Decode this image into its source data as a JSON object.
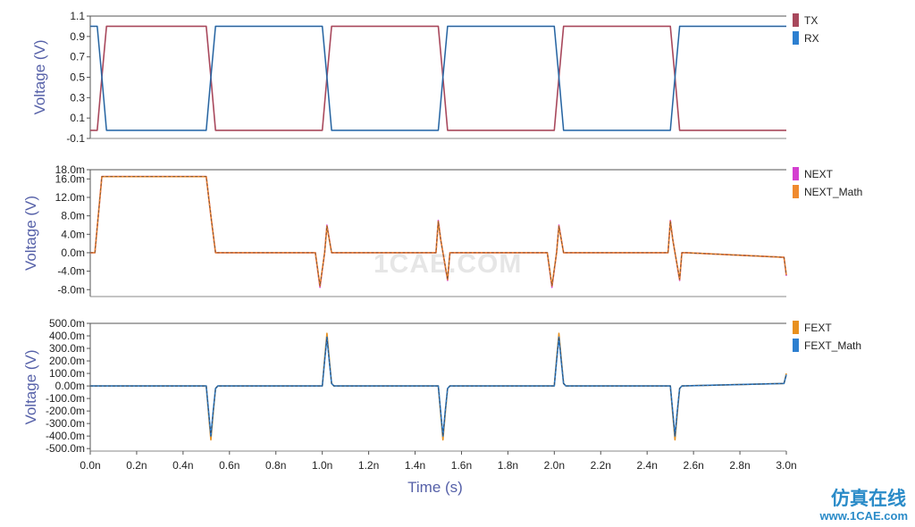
{
  "chart_data": [
    {
      "type": "line",
      "ylabel": "Voltage (V)",
      "xlabel": "",
      "xlim": [
        0,
        3.0
      ],
      "ylim": [
        -0.1,
        1.1
      ],
      "yticks": [
        1.1,
        0.9,
        0.7,
        0.5,
        0.3,
        0.1,
        -0.1
      ],
      "ytick_labels": [
        "1.1",
        "0.9",
        "0.7",
        "0.5",
        "0.3",
        "0.1",
        "-0.1"
      ],
      "legend_position": "right",
      "series": [
        {
          "name": "TX",
          "color": "#a8485c",
          "x": [
            0,
            0.03,
            0.05,
            0.07,
            0.5,
            0.52,
            0.54,
            1.0,
            1.02,
            1.04,
            1.5,
            1.52,
            1.54,
            2.0,
            2.02,
            2.04,
            2.5,
            2.52,
            2.54,
            3.0
          ],
          "y": [
            -0.02,
            -0.02,
            0.5,
            1.0,
            1.0,
            0.5,
            -0.02,
            -0.02,
            0.5,
            1.0,
            1.0,
            0.5,
            -0.02,
            -0.02,
            0.5,
            1.0,
            1.0,
            0.5,
            -0.02,
            -0.02
          ]
        },
        {
          "name": "RX",
          "color": "#2d7fd0",
          "x": [
            0,
            0.03,
            0.05,
            0.07,
            0.5,
            0.52,
            0.54,
            1.0,
            1.02,
            1.04,
            1.5,
            1.52,
            1.54,
            2.0,
            2.02,
            2.04,
            2.5,
            2.52,
            2.54,
            3.0
          ],
          "y": [
            1.0,
            1.0,
            0.5,
            -0.02,
            -0.02,
            0.5,
            1.0,
            1.0,
            0.5,
            -0.02,
            -0.02,
            0.5,
            1.0,
            1.0,
            0.5,
            -0.02,
            -0.02,
            0.5,
            1.0,
            1.0
          ]
        }
      ]
    },
    {
      "type": "line",
      "ylabel": "Voltage (V)",
      "xlabel": "",
      "xlim": [
        0,
        3.0
      ],
      "ylim": [
        -9.5,
        18.0
      ],
      "yticks": [
        18,
        16,
        12,
        8,
        4,
        0,
        -4,
        -8
      ],
      "ytick_labels": [
        "18.0m",
        "16.0m",
        "12.0m",
        "8.0m",
        "4.0m",
        "0.0m",
        "-4.0m",
        "-8.0m"
      ],
      "legend_position": "right",
      "series": [
        {
          "name": "NEXT",
          "color": "#d43fd0",
          "x": [
            0,
            0.02,
            0.05,
            0.5,
            0.52,
            0.54,
            0.97,
            0.99,
            1.01,
            1.02,
            1.04,
            1.06,
            1.49,
            1.5,
            1.51,
            1.52,
            1.54,
            1.55,
            1.57,
            1.97,
            1.99,
            2.01,
            2.02,
            2.04,
            2.06,
            2.49,
            2.5,
            2.51,
            2.52,
            2.54,
            2.55,
            2.57,
            2.99,
            3.0
          ],
          "y": [
            0,
            0,
            16.5,
            16.5,
            8,
            0,
            0,
            -7.5,
            0,
            6,
            0,
            0,
            0,
            7,
            3,
            0,
            -6,
            0,
            0,
            0,
            -7.5,
            0,
            6,
            0,
            0,
            0,
            7,
            3,
            0,
            -6,
            0,
            0,
            -1,
            -5
          ]
        },
        {
          "name": "NEXT_Math",
          "color": "#f08a2e",
          "x": [
            0,
            0.02,
            0.05,
            0.5,
            0.52,
            0.54,
            0.97,
            0.99,
            1.01,
            1.02,
            1.04,
            1.06,
            1.49,
            1.5,
            1.51,
            1.52,
            1.54,
            1.55,
            1.57,
            1.97,
            1.99,
            2.01,
            2.02,
            2.04,
            2.06,
            2.49,
            2.5,
            2.51,
            2.52,
            2.54,
            2.55,
            2.57,
            2.99,
            3.0
          ],
          "y": [
            0,
            0,
            16.5,
            16.5,
            8,
            0,
            0,
            -7.2,
            0,
            5.8,
            0,
            0,
            0,
            6.8,
            3,
            0,
            -5.8,
            0,
            0,
            0,
            -7.2,
            0,
            5.8,
            0,
            0,
            0,
            6.8,
            3,
            0,
            -5.8,
            0,
            0,
            -1,
            -4.8
          ]
        }
      ]
    },
    {
      "type": "line",
      "ylabel": "Voltage (V)",
      "xlabel": "Time (s)",
      "xlim": [
        0,
        3.0
      ],
      "ylim": [
        -520,
        500
      ],
      "yticks": [
        500,
        400,
        300,
        200,
        100,
        0,
        -100,
        -200,
        -300,
        -400,
        -500
      ],
      "ytick_labels": [
        "500.0m",
        "400.0m",
        "300.0m",
        "200.0m",
        "100.0m",
        "0.00m",
        "-100.0m",
        "-200.0m",
        "-300.0m",
        "-400.0m",
        "-500.0m"
      ],
      "xticks": [
        0,
        0.2,
        0.4,
        0.6,
        0.8,
        1.0,
        1.2,
        1.4,
        1.6,
        1.8,
        2.0,
        2.2,
        2.4,
        2.6,
        2.8,
        3.0
      ],
      "xtick_labels": [
        "0.0n",
        "0.2n",
        "0.4n",
        "0.6n",
        "0.8n",
        "1.0n",
        "1.2n",
        "1.4n",
        "1.6n",
        "1.8n",
        "2.0n",
        "2.2n",
        "2.4n",
        "2.6n",
        "2.8n",
        "3.0n"
      ],
      "legend_position": "right",
      "series": [
        {
          "name": "FEXT",
          "color": "#e8901e",
          "x": [
            0,
            0.5,
            0.51,
            0.52,
            0.53,
            0.54,
            0.55,
            1.0,
            1.01,
            1.02,
            1.03,
            1.04,
            1.05,
            1.5,
            1.51,
            1.52,
            1.53,
            1.54,
            1.55,
            2.0,
            2.01,
            2.02,
            2.03,
            2.04,
            2.05,
            2.5,
            2.51,
            2.52,
            2.53,
            2.54,
            2.55,
            2.99,
            3.0
          ],
          "y": [
            0,
            0,
            -220,
            -430,
            -220,
            -20,
            0,
            0,
            220,
            420,
            220,
            20,
            0,
            0,
            -220,
            -430,
            -220,
            -20,
            0,
            0,
            220,
            420,
            220,
            20,
            0,
            0,
            -220,
            -430,
            -220,
            -20,
            0,
            20,
            100
          ]
        },
        {
          "name": "FEXT_Math",
          "color": "#2d7fd0",
          "x": [
            0,
            0.5,
            0.51,
            0.52,
            0.53,
            0.54,
            0.55,
            1.0,
            1.01,
            1.02,
            1.03,
            1.04,
            1.05,
            1.5,
            1.51,
            1.52,
            1.53,
            1.54,
            1.55,
            2.0,
            2.01,
            2.02,
            2.03,
            2.04,
            2.05,
            2.5,
            2.51,
            2.52,
            2.53,
            2.54,
            2.55,
            2.99,
            3.0
          ],
          "y": [
            0,
            0,
            -200,
            -400,
            -200,
            -20,
            0,
            0,
            200,
            390,
            200,
            20,
            0,
            0,
            -200,
            -400,
            -200,
            -20,
            0,
            0,
            200,
            390,
            200,
            20,
            0,
            0,
            -200,
            -400,
            -200,
            -20,
            0,
            20,
            90
          ]
        }
      ]
    }
  ],
  "watermark": "1CAE.COM",
  "brand": {
    "cn_text": "仿真在线",
    "url_text": "www.1CAE.com"
  }
}
